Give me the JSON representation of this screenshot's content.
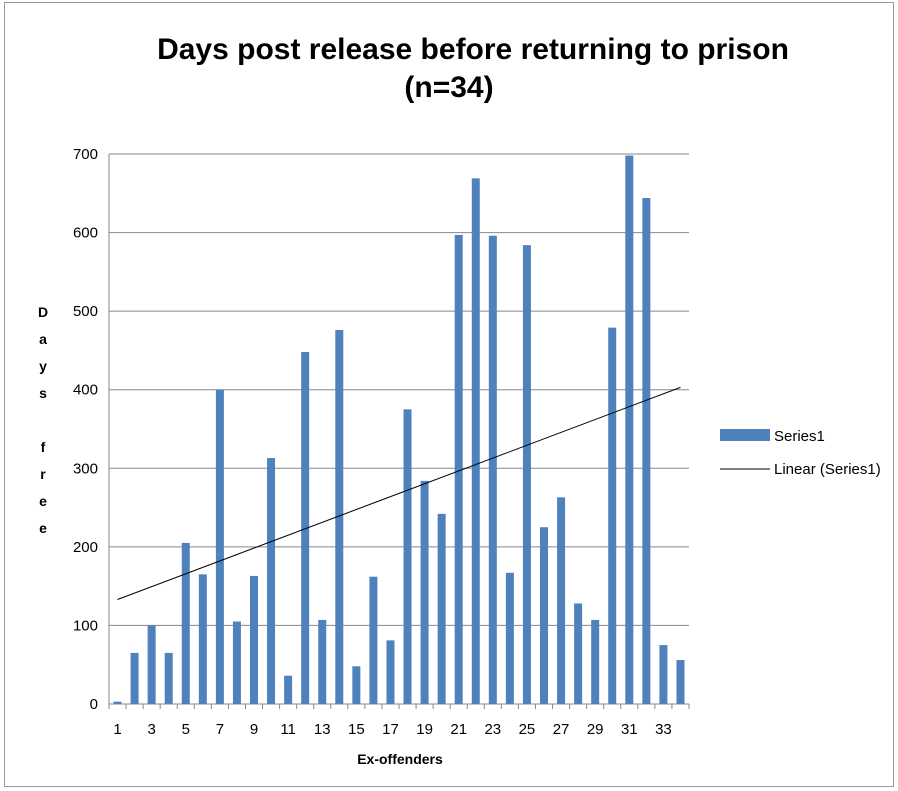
{
  "chart_data": {
    "type": "bar",
    "title": [
      "Days post release before returning to prison",
      "(n=34)"
    ],
    "xlabel": "Ex-offenders",
    "ylabel": "Days free",
    "ylim": [
      0,
      700
    ],
    "yticks": [
      0,
      100,
      200,
      300,
      400,
      500,
      600,
      700
    ],
    "categories": [
      1,
      2,
      3,
      4,
      5,
      6,
      7,
      8,
      9,
      10,
      11,
      12,
      13,
      14,
      15,
      16,
      17,
      18,
      19,
      20,
      21,
      22,
      23,
      24,
      25,
      26,
      27,
      28,
      29,
      30,
      31,
      32,
      33,
      34
    ],
    "xtick_labels": [
      1,
      3,
      5,
      7,
      9,
      11,
      13,
      15,
      17,
      19,
      21,
      23,
      25,
      27,
      29,
      31,
      33
    ],
    "series": [
      {
        "name": "Series1",
        "color": "#4f81bd",
        "values": [
          3,
          65,
          100,
          65,
          205,
          165,
          400,
          105,
          163,
          313,
          36,
          448,
          107,
          476,
          48,
          162,
          81,
          375,
          284,
          242,
          597,
          669,
          596,
          167,
          584,
          225,
          263,
          128,
          107,
          479,
          698,
          644,
          75,
          56
        ]
      }
    ],
    "trendline": {
      "name": "Linear (Series1)",
      "type": "linear",
      "color": "#000000",
      "start_value": 133,
      "end_value": 403
    },
    "grid": true,
    "legend_position": "right"
  }
}
